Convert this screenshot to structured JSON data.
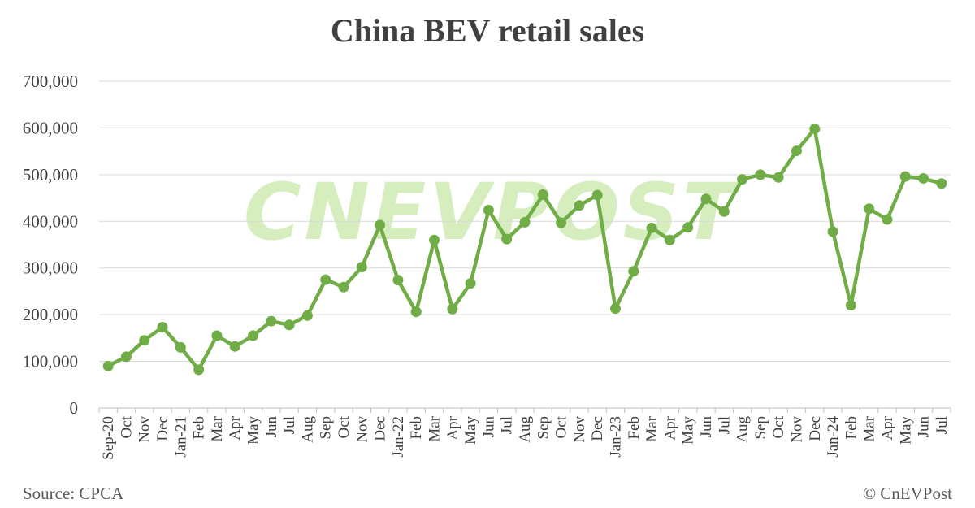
{
  "title": "China BEV retail sales",
  "source": "Source: CPCA",
  "copyright": "© CnEVPost",
  "watermark": {
    "text": "CNEVPOST",
    "color": "#b5e08a"
  },
  "colors": {
    "series": "#70ad47",
    "grid": "#d9d9d9",
    "axis": "#bfbfbf",
    "text": "#404040"
  },
  "chart_data": {
    "type": "line",
    "title": "China BEV retail sales",
    "xlabel": "",
    "ylabel": "",
    "ylim": [
      0,
      700000
    ],
    "yticks": [
      {
        "value": 0,
        "label": "0"
      },
      {
        "value": 100000,
        "label": "100,000"
      },
      {
        "value": 200000,
        "label": "200,000"
      },
      {
        "value": 300000,
        "label": "300,000"
      },
      {
        "value": 400000,
        "label": "400,000"
      },
      {
        "value": 500000,
        "label": "500,000"
      },
      {
        "value": 600000,
        "label": "600,000"
      },
      {
        "value": 700000,
        "label": "700,000"
      }
    ],
    "grid": true,
    "legend": "none",
    "categories": [
      "Sep-20",
      "Oct",
      "Nov",
      "Dec",
      "Jan-21",
      "Feb",
      "Mar",
      "Apr",
      "May",
      "Jun",
      "Jul",
      "Aug",
      "Sep",
      "Oct",
      "Nov",
      "Dec",
      "Jan-22",
      "Feb",
      "Mar",
      "Apr",
      "May",
      "Jun",
      "Jul",
      "Aug",
      "Sep",
      "Oct",
      "Nov",
      "Dec",
      "Jan-23",
      "Feb",
      "Mar",
      "Apr",
      "May",
      "Jun",
      "Jul",
      "Aug",
      "Sep",
      "Oct",
      "Nov",
      "Dec",
      "Jan-24",
      "Feb",
      "Mar",
      "Apr",
      "May",
      "Jun",
      "Jul"
    ],
    "series": [
      {
        "name": "",
        "values": [
          90000,
          110000,
          145000,
          173000,
          130000,
          82000,
          155000,
          132000,
          155000,
          186000,
          178000,
          198000,
          275000,
          259000,
          302000,
          392000,
          274000,
          206000,
          360000,
          212000,
          267000,
          424000,
          362000,
          398000,
          457000,
          397000,
          434000,
          456000,
          213000,
          293000,
          386000,
          360000,
          387000,
          448000,
          421000,
          490000,
          500000,
          494000,
          551000,
          598000,
          378000,
          220000,
          427000,
          404000,
          496000,
          492000,
          481000
        ]
      }
    ]
  }
}
